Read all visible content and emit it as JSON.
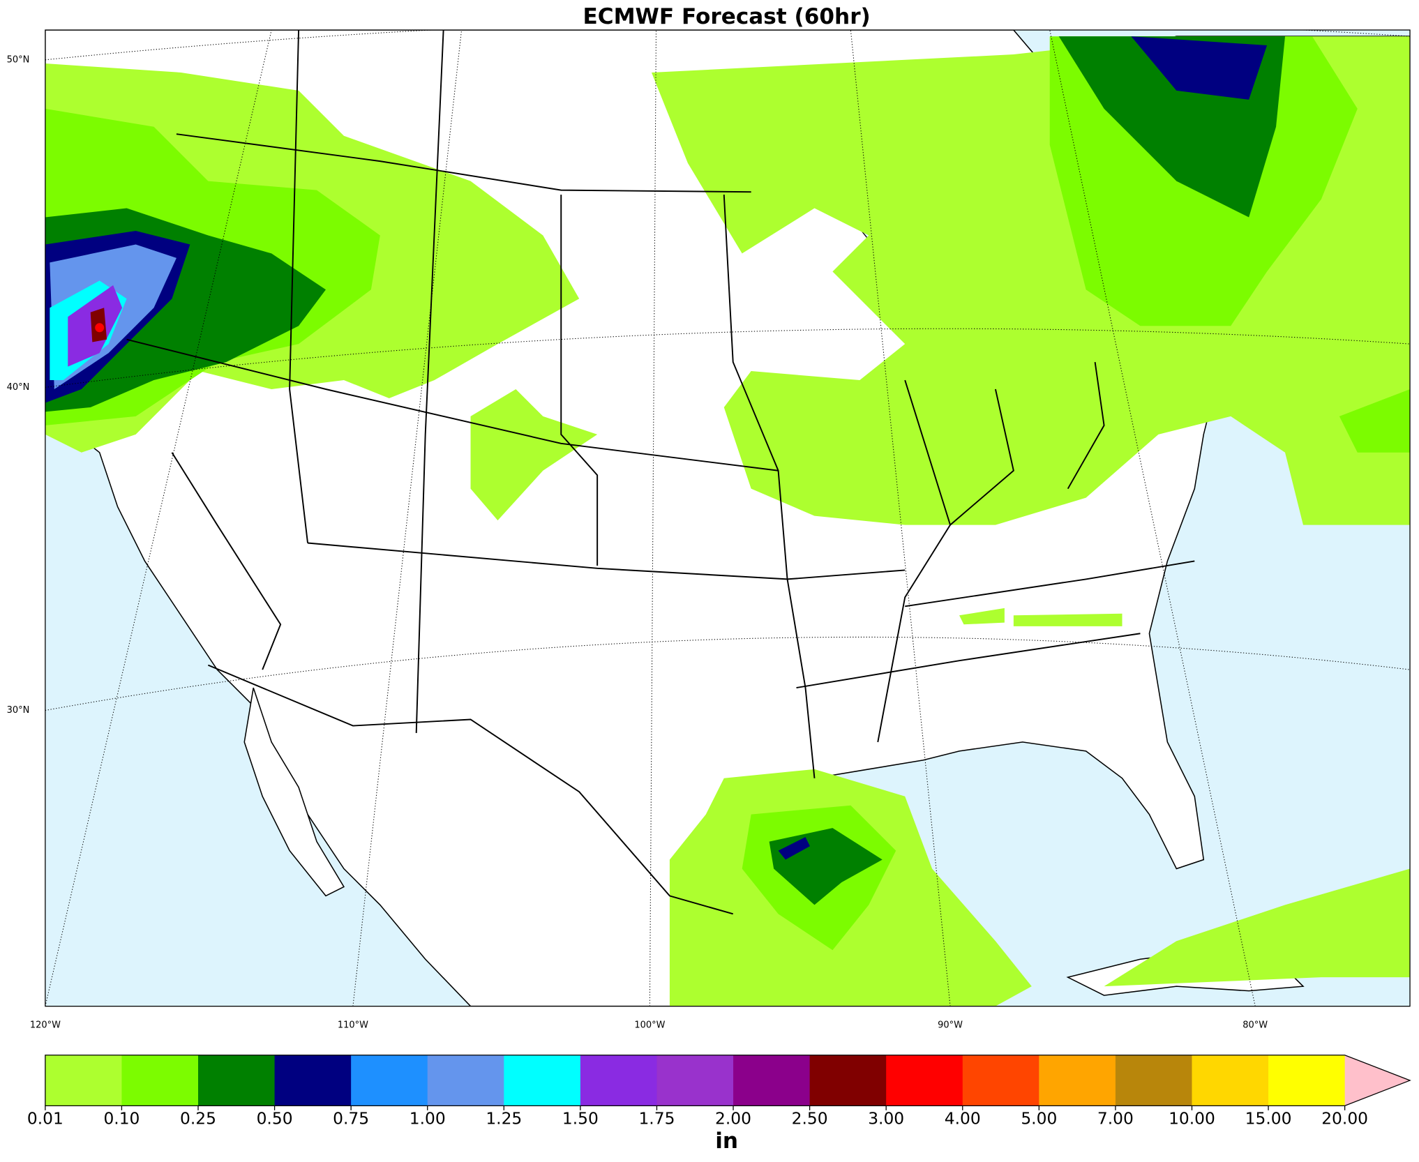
{
  "title": "ECMWF Forecast (60hr)",
  "lat_labels": [
    "50°N",
    "40°N",
    "30°N"
  ],
  "lon_labels": [
    "120°W",
    "110°W",
    "100°W",
    "90°W",
    "80°W"
  ],
  "colorbar": {
    "colors": [
      "#adff2f",
      "#7cfc00",
      "#008000",
      "#000080",
      "#1e90ff",
      "#6495ed",
      "#00ffff",
      "#8a2be2",
      "#9932cc",
      "#8b008b",
      "#800000",
      "#ff0000",
      "#ff4500",
      "#ffa500",
      "#b8860b",
      "#ffd700",
      "#ffff00"
    ],
    "extend_color": "#ffc0cb",
    "ticks": [
      "0.01",
      "0.10",
      "0.25",
      "0.50",
      "0.75",
      "1.00",
      "1.25",
      "1.50",
      "1.75",
      "2.00",
      "2.50",
      "3.00",
      "4.00",
      "5.00",
      "7.00",
      "10.00",
      "15.00",
      "20.00"
    ],
    "label": "in"
  }
}
